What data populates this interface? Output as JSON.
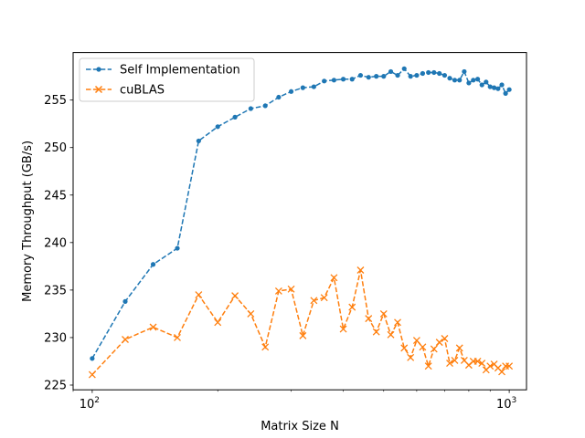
{
  "chart_data": {
    "type": "line",
    "xlabel": "Matrix Size N",
    "ylabel": "Memory Throughput (GB/s)",
    "xscale": "log",
    "xlim": [
      90,
      1100
    ],
    "ylim": [
      224.5,
      260
    ],
    "x_ticks": [
      {
        "value": 100,
        "label": "10",
        "exp": "2"
      },
      {
        "value": 1000,
        "label": "10",
        "exp": "3"
      }
    ],
    "y_ticks": [
      225,
      230,
      235,
      240,
      245,
      250,
      255
    ],
    "grid": false,
    "legend_position": "top-left",
    "series": [
      {
        "name": "Self Implementation",
        "color": "#1f77b4",
        "marker": "dot",
        "linestyle": "dashed",
        "x": [
          100,
          120,
          140,
          160,
          180,
          200,
          220,
          240,
          260,
          280,
          300,
          320,
          340,
          360,
          380,
          400,
          420,
          440,
          460,
          480,
          500,
          520,
          540,
          560,
          580,
          600,
          620,
          640,
          660,
          680,
          700,
          720,
          740,
          760,
          780,
          800,
          820,
          840,
          860,
          880,
          900,
          920,
          940,
          960,
          980,
          1000
        ],
        "values": [
          227.8,
          233.8,
          237.7,
          239.4,
          250.7,
          252.2,
          253.2,
          254.1,
          254.4,
          255.3,
          255.9,
          256.3,
          256.4,
          257.0,
          257.1,
          257.2,
          257.2,
          257.6,
          257.4,
          257.5,
          257.5,
          258.0,
          257.6,
          258.3,
          257.5,
          257.6,
          257.8,
          257.9,
          257.9,
          257.8,
          257.6,
          257.3,
          257.1,
          257.1,
          258.0,
          256.8,
          257.1,
          257.2,
          256.6,
          256.9,
          256.4,
          256.3,
          256.2,
          256.6,
          255.7,
          256.1
        ]
      },
      {
        "name": "cuBLAS",
        "color": "#ff7f0e",
        "marker": "x",
        "linestyle": "dashed",
        "x": [
          100,
          120,
          140,
          160,
          180,
          200,
          220,
          240,
          260,
          280,
          300,
          320,
          340,
          360,
          380,
          400,
          420,
          440,
          460,
          480,
          500,
          520,
          540,
          560,
          580,
          600,
          620,
          640,
          660,
          680,
          700,
          720,
          740,
          760,
          780,
          800,
          820,
          840,
          860,
          880,
          900,
          920,
          940,
          960,
          980,
          1000
        ],
        "values": [
          226.1,
          229.8,
          231.1,
          230.0,
          234.5,
          231.6,
          234.4,
          232.5,
          229.0,
          234.9,
          235.1,
          230.2,
          233.9,
          234.2,
          236.3,
          230.9,
          233.2,
          237.1,
          232.0,
          230.6,
          232.5,
          230.3,
          231.6,
          228.9,
          227.9,
          229.7,
          229.0,
          227.0,
          228.8,
          229.5,
          229.9,
          227.3,
          227.6,
          228.9,
          227.6,
          227.1,
          227.5,
          227.5,
          227.3,
          226.6,
          227.0,
          227.2,
          226.8,
          226.4,
          227.0,
          227.0
        ]
      }
    ]
  }
}
